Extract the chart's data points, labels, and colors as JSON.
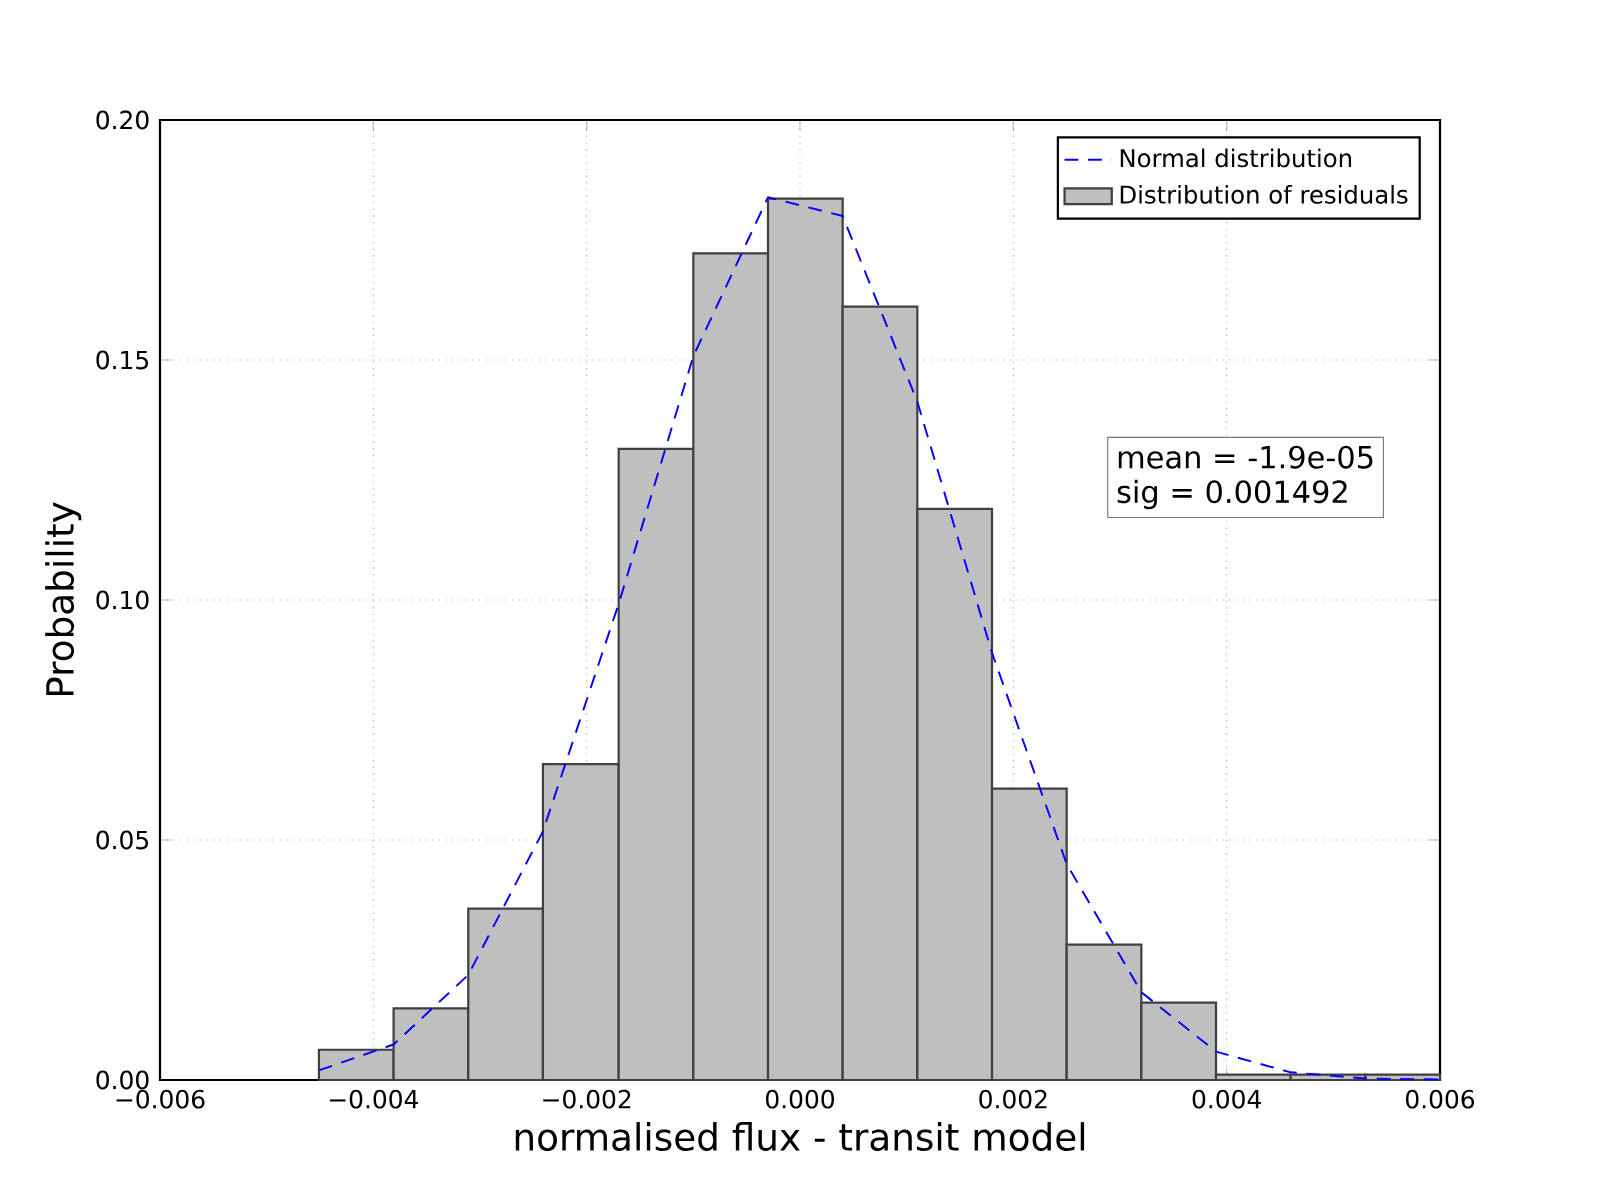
{
  "chart_data": {
    "type": "histogram",
    "xlabel": "normalised flux - transit model",
    "ylabel": "Probability",
    "xlim": [
      -0.006,
      0.006
    ],
    "ylim": [
      0,
      0.2
    ],
    "xticks": [
      {
        "value": -0.006,
        "label": "−0.006"
      },
      {
        "value": -0.004,
        "label": "−0.004"
      },
      {
        "value": -0.002,
        "label": "−0.002"
      },
      {
        "value": 0,
        "label": "0.000"
      },
      {
        "value": 0.002,
        "label": "0.002"
      },
      {
        "value": 0.004,
        "label": "0.004"
      },
      {
        "value": 0.006,
        "label": "0.006"
      }
    ],
    "yticks": [
      {
        "value": 0,
        "label": "0.00"
      },
      {
        "value": 0.05,
        "label": "0.05"
      },
      {
        "value": 0.1,
        "label": "0.10"
      },
      {
        "value": 0.15,
        "label": "0.15"
      },
      {
        "value": 0.2,
        "label": "0.20"
      }
    ],
    "grid": true,
    "legend": "top right",
    "annotations": [
      "mean = -1.9e-05",
      "sig = 0.001492"
    ],
    "series": [
      {
        "type": "line",
        "name": "Normal distribution",
        "color": "#0000ff",
        "line_style": "dashed",
        "x": [
          -0.00451,
          -0.00381,
          -0.00311,
          -0.00241,
          -0.0017,
          -0.001,
          -0.0003,
          0.0004,
          0.0011,
          0.0018,
          0.0025,
          0.0032,
          0.0039,
          0.0046,
          0.0053,
          0.006
        ],
        "values": [
          0.002,
          0.0074,
          0.0219,
          0.0518,
          0.0992,
          0.1508,
          0.1839,
          0.18,
          0.1413,
          0.089,
          0.045,
          0.0183,
          0.0059,
          0.0016,
          0.0003,
          0.0001
        ]
      },
      {
        "type": "histogram",
        "name": "Distribution of residuals",
        "color": "#bfbfbf",
        "bins": [
          -0.00451,
          -0.00381,
          -0.00311,
          -0.00241,
          -0.0017,
          -0.001,
          -0.0003,
          0.0004,
          0.0011,
          0.0018,
          0.0025,
          0.0032,
          0.0039,
          0.0046,
          0.0053,
          0.006
        ],
        "values": [
          0.0063,
          0.0149,
          0.0357,
          0.0658,
          0.1315,
          0.1722,
          0.1836,
          0.1611,
          0.119,
          0.0607,
          0.0282,
          0.0161,
          0.0011,
          0.0011,
          0.0011
        ]
      }
    ]
  }
}
